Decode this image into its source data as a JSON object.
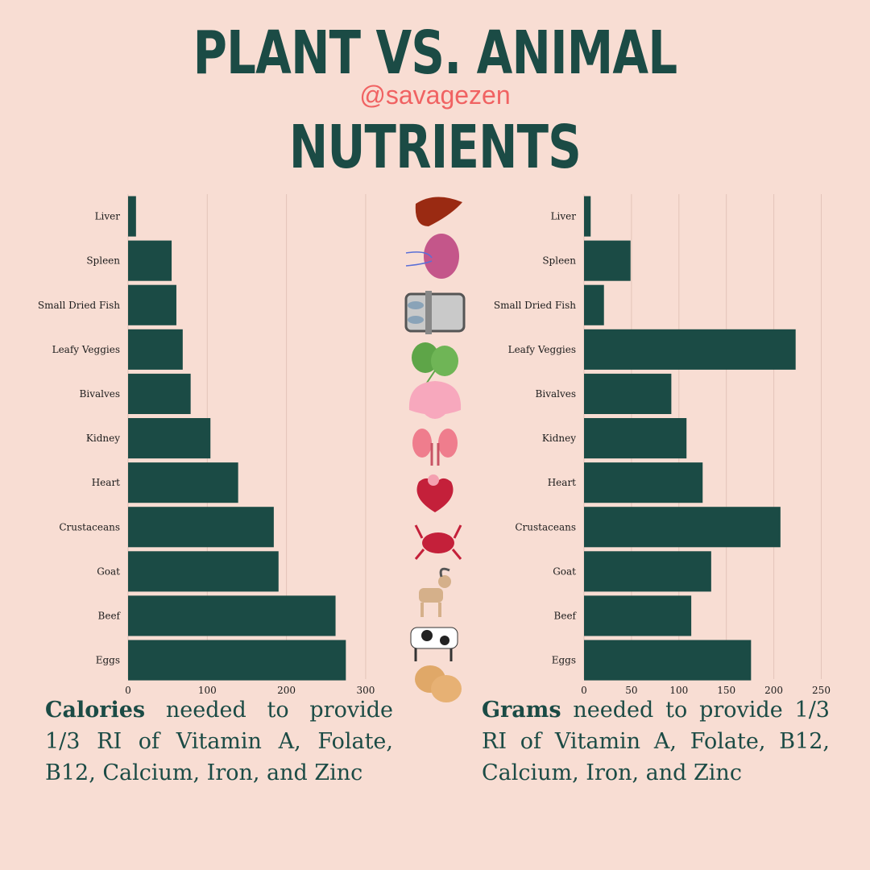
{
  "title": {
    "line1": "PLANT VS. ANIMAL",
    "handle": "@savagezen",
    "line2": "NUTRIENTS"
  },
  "captions": {
    "left_bold": "Calories",
    "left_rest": " needed to provide 1/3 RI of Vitamin A, Folate, B12, Calcium, Iron, and Zinc",
    "right_bold": "Grams",
    "right_rest": " needed to provide 1/3 RI of Vitamin A, Folate, B12, Calcium, Iron, and Zinc"
  },
  "icons": [
    "liver-icon",
    "spleen-icon",
    "dried-fish-tin-icon",
    "leafy-veggies-icon",
    "bivalve-shell-icon",
    "kidney-icon",
    "heart-icon",
    "crab-icon",
    "goat-icon",
    "cow-icon",
    "eggs-icon"
  ],
  "colors": {
    "bar": "#1b4b45",
    "background": "#f8ddd3",
    "accent": "#f06262"
  },
  "chart_data": [
    {
      "type": "bar",
      "orientation": "horizontal",
      "categories": [
        "Liver",
        "Spleen",
        "Small Dried Fish",
        "Leafy Veggies",
        "Bivalves",
        "Kidney",
        "Heart",
        "Crustaceans",
        "Goat",
        "Beef",
        "Eggs"
      ],
      "values": [
        10,
        55,
        61,
        69,
        79,
        104,
        139,
        184,
        190,
        262,
        275
      ],
      "xlim": [
        0,
        300
      ],
      "xticks": [
        0,
        100,
        200,
        300
      ],
      "grid": true
    },
    {
      "type": "bar",
      "orientation": "horizontal",
      "categories": [
        "Liver",
        "Spleen",
        "Small Dried Fish",
        "Leafy Veggies",
        "Bivalves",
        "Kidney",
        "Heart",
        "Crustaceans",
        "Goat",
        "Beef",
        "Eggs"
      ],
      "values": [
        7,
        49,
        21,
        223,
        92,
        108,
        125,
        207,
        134,
        113,
        176
      ],
      "xlim": [
        0,
        250
      ],
      "xticks": [
        0,
        50,
        100,
        150,
        200,
        250
      ],
      "grid": true
    }
  ]
}
